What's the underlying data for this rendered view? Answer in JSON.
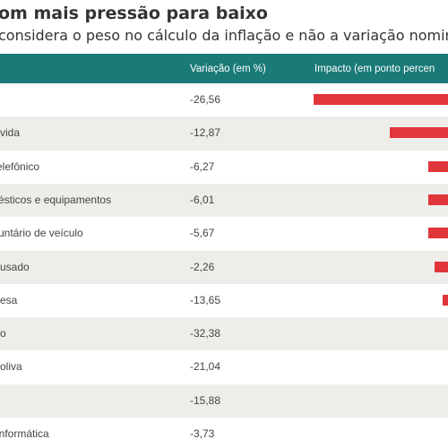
{
  "title": "om mais pressão para baixo",
  "subtitle": "considera o peso no cálculo da inflação e não a variação nominal",
  "colors": {
    "header": "#1a7a78",
    "bar": "#e0353a",
    "stripe": "#efedea"
  },
  "table": {
    "headers": {
      "variation": "Variação (em %)",
      "impact": "Impacto (em ponto percen"
    }
  },
  "chart_data": {
    "type": "bar",
    "orientation": "horizontal",
    "categories": [
      "",
      "vida",
      "elefônico",
      "ésticos e equipamentos",
      "untário de veículo",
      "usado",
      "esa",
      "o",
      "oliva",
      "",
      "informática"
    ],
    "variation_pct": [
      "-26,56",
      "-12,87",
      "-6,27",
      "-6,01",
      "-5,67",
      "-2,26",
      "-13,65",
      "-32,38",
      "-21,04",
      "-15,88",
      "-3,73"
    ],
    "impact_bar_relative": [
      1.0,
      0.435,
      0.149,
      0.149,
      0.149,
      0.098,
      0.041,
      0,
      0,
      0,
      0
    ],
    "bar_scale_note": null
  }
}
